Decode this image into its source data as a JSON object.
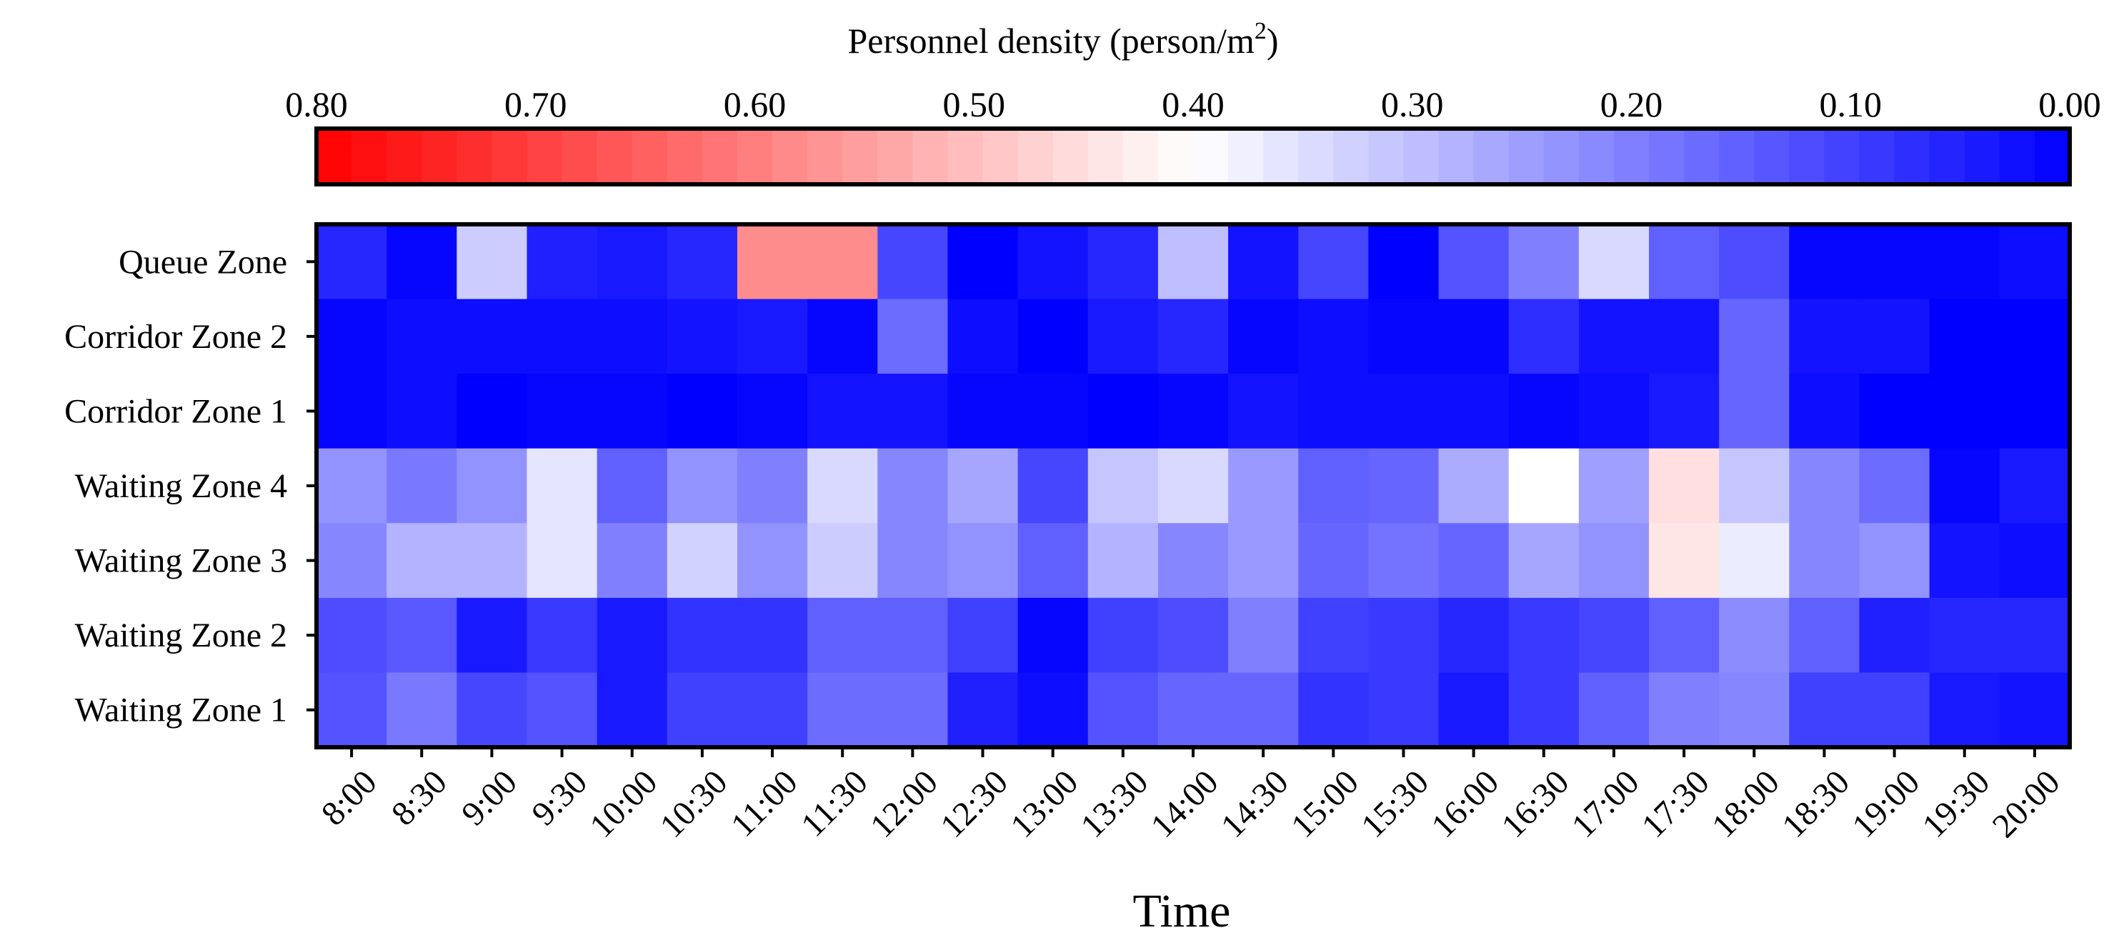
{
  "chart_data": {
    "type": "heatmap",
    "title": "Personnel density (person/m²)",
    "title_main": "Personnel density (person/m",
    "title_sup": "2",
    "title_end": ")",
    "xlabel": "Time",
    "ylabel": "",
    "x": [
      "8:00",
      "8:30",
      "9:00",
      "9:30",
      "10:00",
      "10:30",
      "11:00",
      "11:30",
      "12:00",
      "12:30",
      "13:00",
      "13:30",
      "14:00",
      "14:30",
      "15:00",
      "15:30",
      "16:00",
      "16:30",
      "17:00",
      "17:30",
      "18:00",
      "18:30",
      "19:00",
      "19:30",
      "20:00"
    ],
    "y": [
      "Queue Zone",
      "Corridor Zone 2",
      "Corridor Zone 1",
      "Waiting Zone 4",
      "Waiting Zone 3",
      "Waiting Zone 2",
      "Waiting Zone 1"
    ],
    "values": [
      [
        0.06,
        0.01,
        0.32,
        0.05,
        0.04,
        0.06,
        0.58,
        0.58,
        0.11,
        0.0,
        0.03,
        0.06,
        0.3,
        0.03,
        0.11,
        0.0,
        0.13,
        0.2,
        0.34,
        0.15,
        0.12,
        0.01,
        0.01,
        0.01,
        0.02
      ],
      [
        0.01,
        0.02,
        0.02,
        0.02,
        0.02,
        0.03,
        0.04,
        0.01,
        0.17,
        0.02,
        0.0,
        0.04,
        0.06,
        0.01,
        0.02,
        0.01,
        0.01,
        0.07,
        0.03,
        0.03,
        0.16,
        0.03,
        0.03,
        0.0,
        0.0
      ],
      [
        0.01,
        0.02,
        0.0,
        0.01,
        0.01,
        0.0,
        0.01,
        0.03,
        0.03,
        0.01,
        0.01,
        0.0,
        0.01,
        0.03,
        0.02,
        0.02,
        0.02,
        0.01,
        0.02,
        0.04,
        0.16,
        0.02,
        0.0,
        0.0,
        0.0
      ],
      [
        0.23,
        0.19,
        0.23,
        0.36,
        0.15,
        0.23,
        0.2,
        0.34,
        0.21,
        0.26,
        0.11,
        0.31,
        0.34,
        0.24,
        0.15,
        0.16,
        0.27,
        0.4,
        0.25,
        0.45,
        0.31,
        0.21,
        0.17,
        0.01,
        0.04
      ],
      [
        0.21,
        0.28,
        0.28,
        0.36,
        0.2,
        0.33,
        0.23,
        0.32,
        0.21,
        0.23,
        0.15,
        0.28,
        0.21,
        0.24,
        0.16,
        0.18,
        0.16,
        0.26,
        0.23,
        0.44,
        0.37,
        0.21,
        0.23,
        0.03,
        0.02
      ],
      [
        0.12,
        0.14,
        0.04,
        0.09,
        0.04,
        0.08,
        0.08,
        0.15,
        0.15,
        0.1,
        0.01,
        0.1,
        0.12,
        0.2,
        0.1,
        0.09,
        0.06,
        0.09,
        0.11,
        0.15,
        0.22,
        0.15,
        0.05,
        0.06,
        0.06
      ],
      [
        0.13,
        0.19,
        0.11,
        0.13,
        0.04,
        0.1,
        0.1,
        0.17,
        0.17,
        0.05,
        0.02,
        0.13,
        0.16,
        0.16,
        0.08,
        0.09,
        0.04,
        0.09,
        0.15,
        0.2,
        0.21,
        0.1,
        0.1,
        0.04,
        0.03
      ]
    ],
    "colorbar": {
      "min": 0.0,
      "max": 0.8,
      "ticks": [
        "0.80",
        "0.70",
        "0.60",
        "0.50",
        "0.40",
        "0.30",
        "0.20",
        "0.10",
        "0.00"
      ],
      "tick_values": [
        0.8,
        0.7,
        0.6,
        0.5,
        0.4,
        0.3,
        0.2,
        0.1,
        0.0
      ],
      "direction": "descending left-to-right",
      "colors": {
        "low": "#0000ff",
        "mid": "#ffffff",
        "high": "#ff0000"
      },
      "mid_value": 0.4,
      "placement": "top"
    },
    "grid": false,
    "legend": "colorbar at top"
  }
}
